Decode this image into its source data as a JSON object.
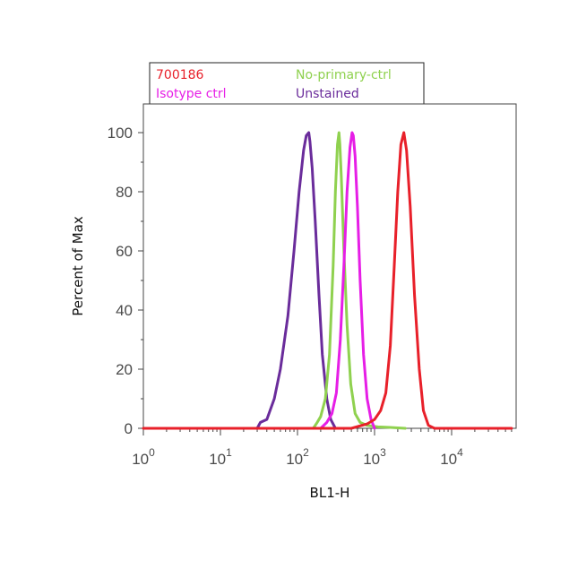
{
  "chart_data": {
    "type": "line",
    "xlabel": "BL1-H",
    "ylabel": "Percent of Max",
    "x_scale": "log",
    "xlim": [
      1,
      60000
    ],
    "ylim": [
      0,
      110
    ],
    "x_ticks": [
      {
        "value": 1,
        "base": "10",
        "exp": "0"
      },
      {
        "value": 10,
        "base": "10",
        "exp": "1"
      },
      {
        "value": 100,
        "base": "10",
        "exp": "2"
      },
      {
        "value": 1000,
        "base": "10",
        "exp": "3"
      },
      {
        "value": 10000,
        "base": "10",
        "exp": "4"
      }
    ],
    "y_ticks": [
      "0",
      "20",
      "40",
      "60",
      "80",
      "100"
    ],
    "legend": [
      {
        "label": "700186",
        "color": "#e8202a"
      },
      {
        "label": "No-primary-ctrl",
        "color": "#8fd14f"
      },
      {
        "label": "Isotype ctrl",
        "color": "#e61ee6"
      },
      {
        "label": "Unstained",
        "color": "#6a2c9b"
      }
    ],
    "series": [
      {
        "name": "Unstained",
        "color": "#6a2c9b",
        "x": [
          30,
          33,
          40,
          50,
          60,
          75,
          90,
          105,
          120,
          130,
          140,
          145,
          155,
          170,
          190,
          210,
          240,
          270,
          310
        ],
        "y": [
          0,
          2,
          3,
          10,
          20,
          38,
          60,
          80,
          94,
          99,
          100,
          97,
          88,
          70,
          45,
          25,
          10,
          3,
          0
        ]
      },
      {
        "name": "No-primary-ctrl",
        "color": "#8fd14f",
        "x": [
          160,
          180,
          200,
          230,
          260,
          290,
          310,
          330,
          345,
          355,
          370,
          400,
          440,
          490,
          560,
          650,
          800,
          1100,
          1600,
          2500
        ],
        "y": [
          0,
          2,
          4,
          10,
          25,
          55,
          80,
          96,
          100,
          96,
          85,
          60,
          35,
          15,
          5,
          2,
          1,
          0.5,
          0.3,
          0
        ]
      },
      {
        "name": "Isotype ctrl",
        "color": "#e61ee6",
        "x": [
          200,
          240,
          280,
          320,
          360,
          400,
          440,
          480,
          510,
          530,
          560,
          600,
          650,
          720,
          800,
          900,
          1000
        ],
        "y": [
          0,
          2,
          5,
          12,
          30,
          55,
          80,
          95,
          100,
          99,
          92,
          75,
          50,
          25,
          10,
          3,
          0
        ]
      },
      {
        "name": "700186",
        "color": "#e8202a",
        "x": [
          1,
          200,
          500,
          800,
          1000,
          1200,
          1400,
          1600,
          1800,
          2000,
          2200,
          2400,
          2600,
          2900,
          3300,
          3800,
          4300,
          5000,
          6000,
          60000
        ],
        "y": [
          0,
          0,
          0,
          1.5,
          3,
          6,
          12,
          28,
          55,
          80,
          96,
          100,
          94,
          75,
          45,
          20,
          6,
          1,
          0,
          0
        ]
      }
    ]
  }
}
